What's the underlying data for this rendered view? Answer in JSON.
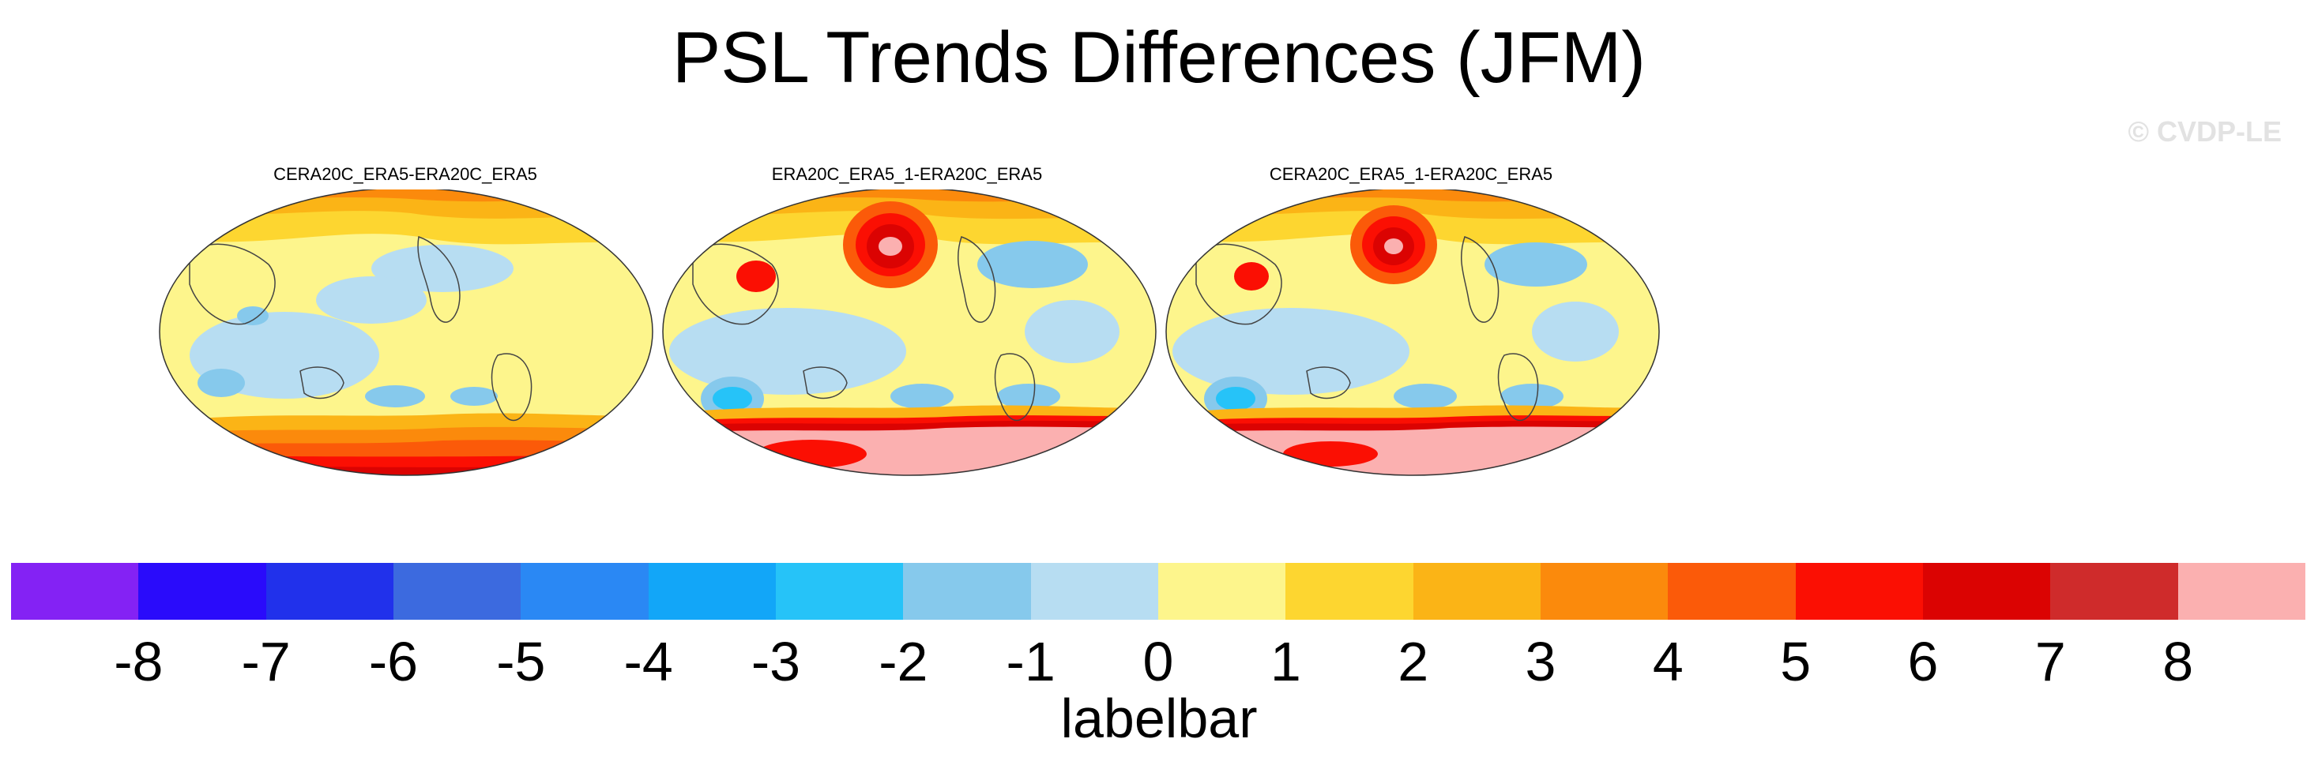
{
  "title": "PSL Trends Differences (JFM)",
  "watermark": "© CVDP-LE",
  "panels": [
    {
      "title": "CERA20C_ERA5-ERA20C_ERA5"
    },
    {
      "title": "ERA20C_ERA5_1-ERA20C_ERA5"
    },
    {
      "title": "CERA20C_ERA5_1-ERA20C_ERA5"
    }
  ],
  "labelbar": {
    "title": "labelbar",
    "ticks": [
      "-8",
      "-7",
      "-6",
      "-5",
      "-4",
      "-3",
      "-2",
      "-1",
      "0",
      "1",
      "2",
      "3",
      "4",
      "5",
      "6",
      "7",
      "8"
    ],
    "colors": [
      "#8422f4",
      "#2a0bfb",
      "#2131eb",
      "#3c6adf",
      "#2a88f4",
      "#12a6f8",
      "#26c3f8",
      "#86c9ec",
      "#b7ddf2",
      "#fdf58c",
      "#fdd630",
      "#fbb416",
      "#fb8a0c",
      "#fb5a09",
      "#fb0f03",
      "#db0302",
      "#cf2b2b",
      "#fbb0b0"
    ]
  }
}
